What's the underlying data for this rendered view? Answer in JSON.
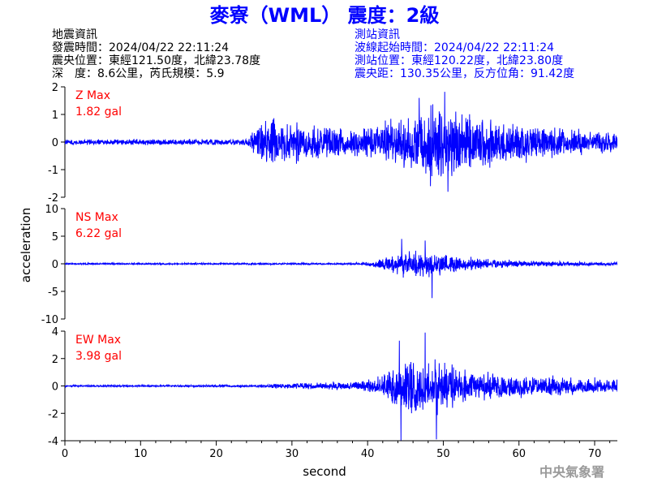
{
  "title": "麥寮（WML） 震度：2級",
  "event_info": {
    "heading": "地震資訊",
    "time": "發震時間：2024/04/22 22:11:24",
    "epicenter": "震央位置：東經121.50度，北緯23.78度",
    "depth_magnitude": "深　度：8.6公里，芮氏規模：5.9"
  },
  "station_info": {
    "heading": "測站資訊",
    "wave_start": "波線起始時間：2024/04/22 22:11:24",
    "location": "測站位置：東經120.22度，北緯23.80度",
    "distance_azimuth": "震央距：130.35公里，反方位角：91.42度"
  },
  "footer": "中央氣象署",
  "colors": {
    "title": "#0000ff",
    "station_info": "#0000ff",
    "trace": "#0000ff",
    "max_label": "#ff0000",
    "event_info": "#000000"
  },
  "chart_data": {
    "type": "line",
    "xlabel": "second",
    "ylabel": "acceleration",
    "xlim": [
      0,
      73
    ],
    "xticks": [
      0,
      10,
      20,
      30,
      40,
      50,
      60,
      70
    ],
    "panels": [
      {
        "component": "Z",
        "max_label": "Z Max",
        "max_value": "1.82 gal",
        "ylim": [
          -2,
          2
        ],
        "yticks": [
          -2,
          -1,
          0,
          1,
          2
        ],
        "envelope": [
          {
            "t": 0,
            "amp": 0.12
          },
          {
            "t": 24,
            "amp": 0.13
          },
          {
            "t": 25,
            "amp": 0.5
          },
          {
            "t": 27,
            "amp": 1.0
          },
          {
            "t": 30,
            "amp": 0.9
          },
          {
            "t": 34,
            "amp": 0.7
          },
          {
            "t": 38,
            "amp": 0.6
          },
          {
            "t": 42,
            "amp": 0.75
          },
          {
            "t": 44,
            "amp": 1.1
          },
          {
            "t": 47,
            "amp": 1.35
          },
          {
            "t": 50,
            "amp": 1.6
          },
          {
            "t": 53,
            "amp": 1.2
          },
          {
            "t": 57,
            "amp": 0.95
          },
          {
            "t": 62,
            "amp": 0.75
          },
          {
            "t": 67,
            "amp": 0.55
          },
          {
            "t": 73,
            "amp": 0.45
          }
        ],
        "peaks": [
          {
            "t": 50.2,
            "value": 1.82
          },
          {
            "t": 50.6,
            "value": -1.8
          },
          {
            "t": 46.8,
            "value": 1.6
          },
          {
            "t": 48.3,
            "value": -1.6
          }
        ]
      },
      {
        "component": "NS",
        "max_label": "NS Max",
        "max_value": "6.22 gal",
        "ylim": [
          -10,
          10
        ],
        "yticks": [
          -10,
          -5,
          0,
          5,
          10
        ],
        "envelope": [
          {
            "t": 0,
            "amp": 0.15
          },
          {
            "t": 37,
            "amp": 0.2
          },
          {
            "t": 40,
            "amp": 0.4
          },
          {
            "t": 41,
            "amp": 0.8
          },
          {
            "t": 43,
            "amp": 1.8
          },
          {
            "t": 45,
            "amp": 2.8
          },
          {
            "t": 47,
            "amp": 3.0
          },
          {
            "t": 49,
            "amp": 2.5
          },
          {
            "t": 52,
            "amp": 1.6
          },
          {
            "t": 56,
            "amp": 1.0
          },
          {
            "t": 62,
            "amp": 0.6
          },
          {
            "t": 67,
            "amp": 0.45
          },
          {
            "t": 73,
            "amp": 0.3
          }
        ],
        "peaks": [
          {
            "t": 44.5,
            "value": 4.5
          },
          {
            "t": 44.7,
            "value": -2.5
          },
          {
            "t": 47.6,
            "value": 4.2
          },
          {
            "t": 48.5,
            "value": -6.22
          }
        ]
      },
      {
        "component": "EW",
        "max_label": "EW Max",
        "max_value": "3.98 gal",
        "ylim": [
          -4,
          4
        ],
        "yticks": [
          -4,
          -2,
          0,
          2,
          4
        ],
        "envelope": [
          {
            "t": 0,
            "amp": 0.08
          },
          {
            "t": 25,
            "amp": 0.09
          },
          {
            "t": 27,
            "amp": 0.2
          },
          {
            "t": 33,
            "amp": 0.3
          },
          {
            "t": 38,
            "amp": 0.35
          },
          {
            "t": 41,
            "amp": 0.6
          },
          {
            "t": 43,
            "amp": 1.5
          },
          {
            "t": 46,
            "amp": 2.4
          },
          {
            "t": 50,
            "amp": 2.1
          },
          {
            "t": 53,
            "amp": 1.3
          },
          {
            "t": 58,
            "amp": 1.0
          },
          {
            "t": 63,
            "amp": 0.9
          },
          {
            "t": 68,
            "amp": 0.75
          },
          {
            "t": 73,
            "amp": 0.6
          }
        ],
        "peaks": [
          {
            "t": 44.2,
            "value": 3.3
          },
          {
            "t": 44.4,
            "value": -3.98
          },
          {
            "t": 47.6,
            "value": 3.9
          },
          {
            "t": 49.1,
            "value": -3.9
          }
        ]
      }
    ]
  }
}
